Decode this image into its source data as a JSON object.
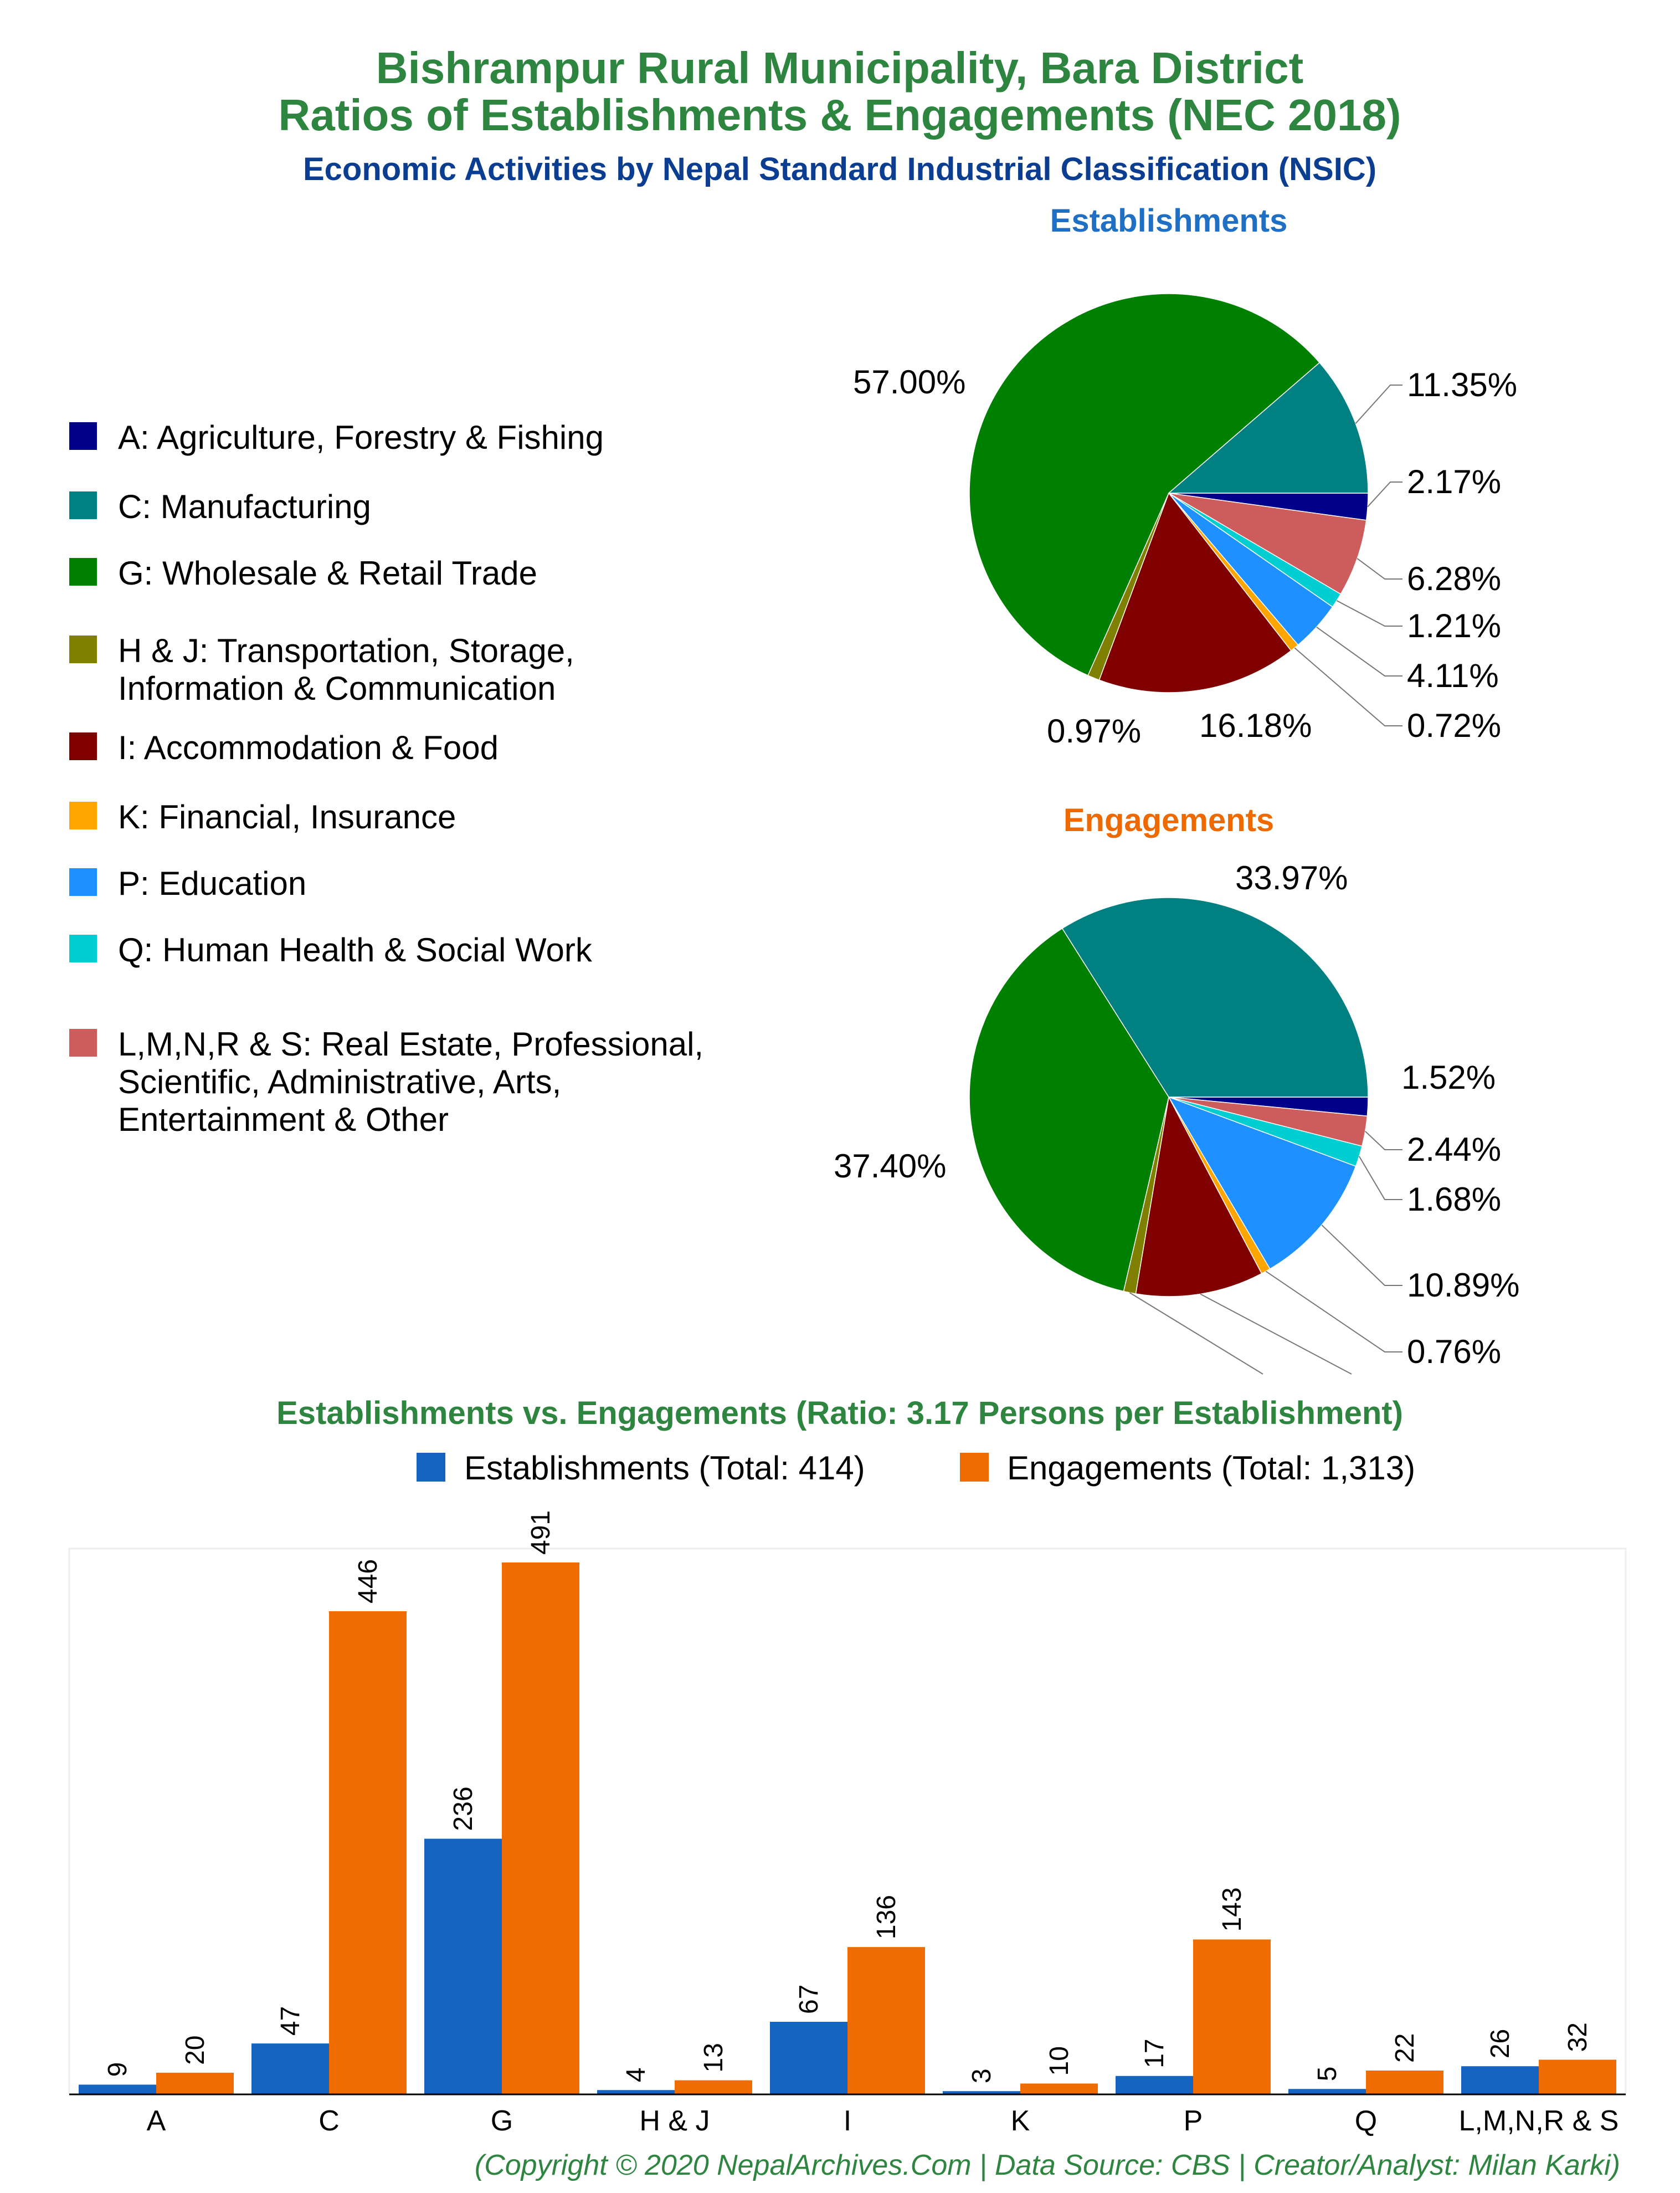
{
  "title_line1": "Bishrampur Rural Municipality, Bara District",
  "title_line2": "Ratios of Establishments & Engagements (NEC 2018)",
  "subtitle": "Economic Activities by Nepal Standard Industrial Classification (NSIC)",
  "colors": {
    "A": "#00008b",
    "C": "#008080",
    "G": "#008000",
    "HJ": "#808000",
    "I": "#800000",
    "K": "#ffa500",
    "P": "#1e90ff",
    "Q": "#00ced1",
    "LMNRS": "#cd5c5c",
    "est_bar": "#1565c0",
    "eng_bar": "#ef6c00"
  },
  "legend": [
    {
      "key": "A",
      "label": "A: Agriculture, Forestry & Fishing"
    },
    {
      "key": "C",
      "label": "C: Manufacturing"
    },
    {
      "key": "G",
      "label": "G: Wholesale & Retail Trade"
    },
    {
      "key": "HJ",
      "label": "H & J: Transportation, Storage,",
      "label2": "Information & Communication"
    },
    {
      "key": "I",
      "label": "I: Accommodation & Food"
    },
    {
      "key": "K",
      "label": "K: Financial, Insurance"
    },
    {
      "key": "P",
      "label": "P: Education"
    },
    {
      "key": "Q",
      "label": "Q: Human Health & Social Work"
    },
    {
      "key": "LMNRS",
      "label": "L,M,N,R & S: Real Estate, Professional,",
      "label2": "Scientific, Administrative, Arts,",
      "label3": "Entertainment & Other"
    }
  ],
  "chart_data": [
    {
      "type": "pie",
      "title": "Establishments",
      "slices": [
        {
          "key": "A",
          "value": 2.17,
          "label": "2.17%"
        },
        {
          "key": "LMNRS",
          "value": 6.28,
          "label": "6.28%"
        },
        {
          "key": "Q",
          "value": 1.21,
          "label": "1.21%"
        },
        {
          "key": "P",
          "value": 4.11,
          "label": "4.11%"
        },
        {
          "key": "K",
          "value": 0.72,
          "label": "0.72%"
        },
        {
          "key": "I",
          "value": 16.18,
          "label": "16.18%"
        },
        {
          "key": "HJ",
          "value": 0.97,
          "label": "0.97%"
        },
        {
          "key": "G",
          "value": 57.0,
          "label": "57.00%"
        },
        {
          "key": "C",
          "value": 11.35,
          "label": "11.35%"
        }
      ]
    },
    {
      "type": "pie",
      "title": "Engagements",
      "slices": [
        {
          "key": "A",
          "value": 1.52,
          "label": "1.52%"
        },
        {
          "key": "LMNRS",
          "value": 2.44,
          "label": "2.44%"
        },
        {
          "key": "Q",
          "value": 1.68,
          "label": "1.68%"
        },
        {
          "key": "P",
          "value": 10.89,
          "label": "10.89%"
        },
        {
          "key": "K",
          "value": 0.76,
          "label": "0.76%"
        },
        {
          "key": "I",
          "value": 10.36,
          "label": ""
        },
        {
          "key": "HJ",
          "value": 0.99,
          "label": ""
        },
        {
          "key": "G",
          "value": 37.4,
          "label": "37.40%"
        },
        {
          "key": "C",
          "value": 33.97,
          "label": "33.97%"
        }
      ]
    },
    {
      "type": "bar",
      "title": "Establishments vs. Engagements (Ratio: 3.17 Persons per Establishment)",
      "categories": [
        "A",
        "C",
        "G",
        "H & J",
        "I",
        "K",
        "P",
        "Q",
        "L,M,N,R & S"
      ],
      "series": [
        {
          "name": "Establishments (Total: 414)",
          "values": [
            9,
            47,
            236,
            4,
            67,
            3,
            17,
            5,
            26
          ]
        },
        {
          "name": "Engagements (Total: 1,313)",
          "values": [
            20,
            446,
            491,
            13,
            136,
            10,
            143,
            22,
            32
          ]
        }
      ],
      "ylim": [
        0,
        491
      ],
      "legend": "top"
    }
  ],
  "footer": "(Copyright © 2020 NepalArchives.Com | Data Source: CBS | Creator/Analyst: Milan Karki)"
}
